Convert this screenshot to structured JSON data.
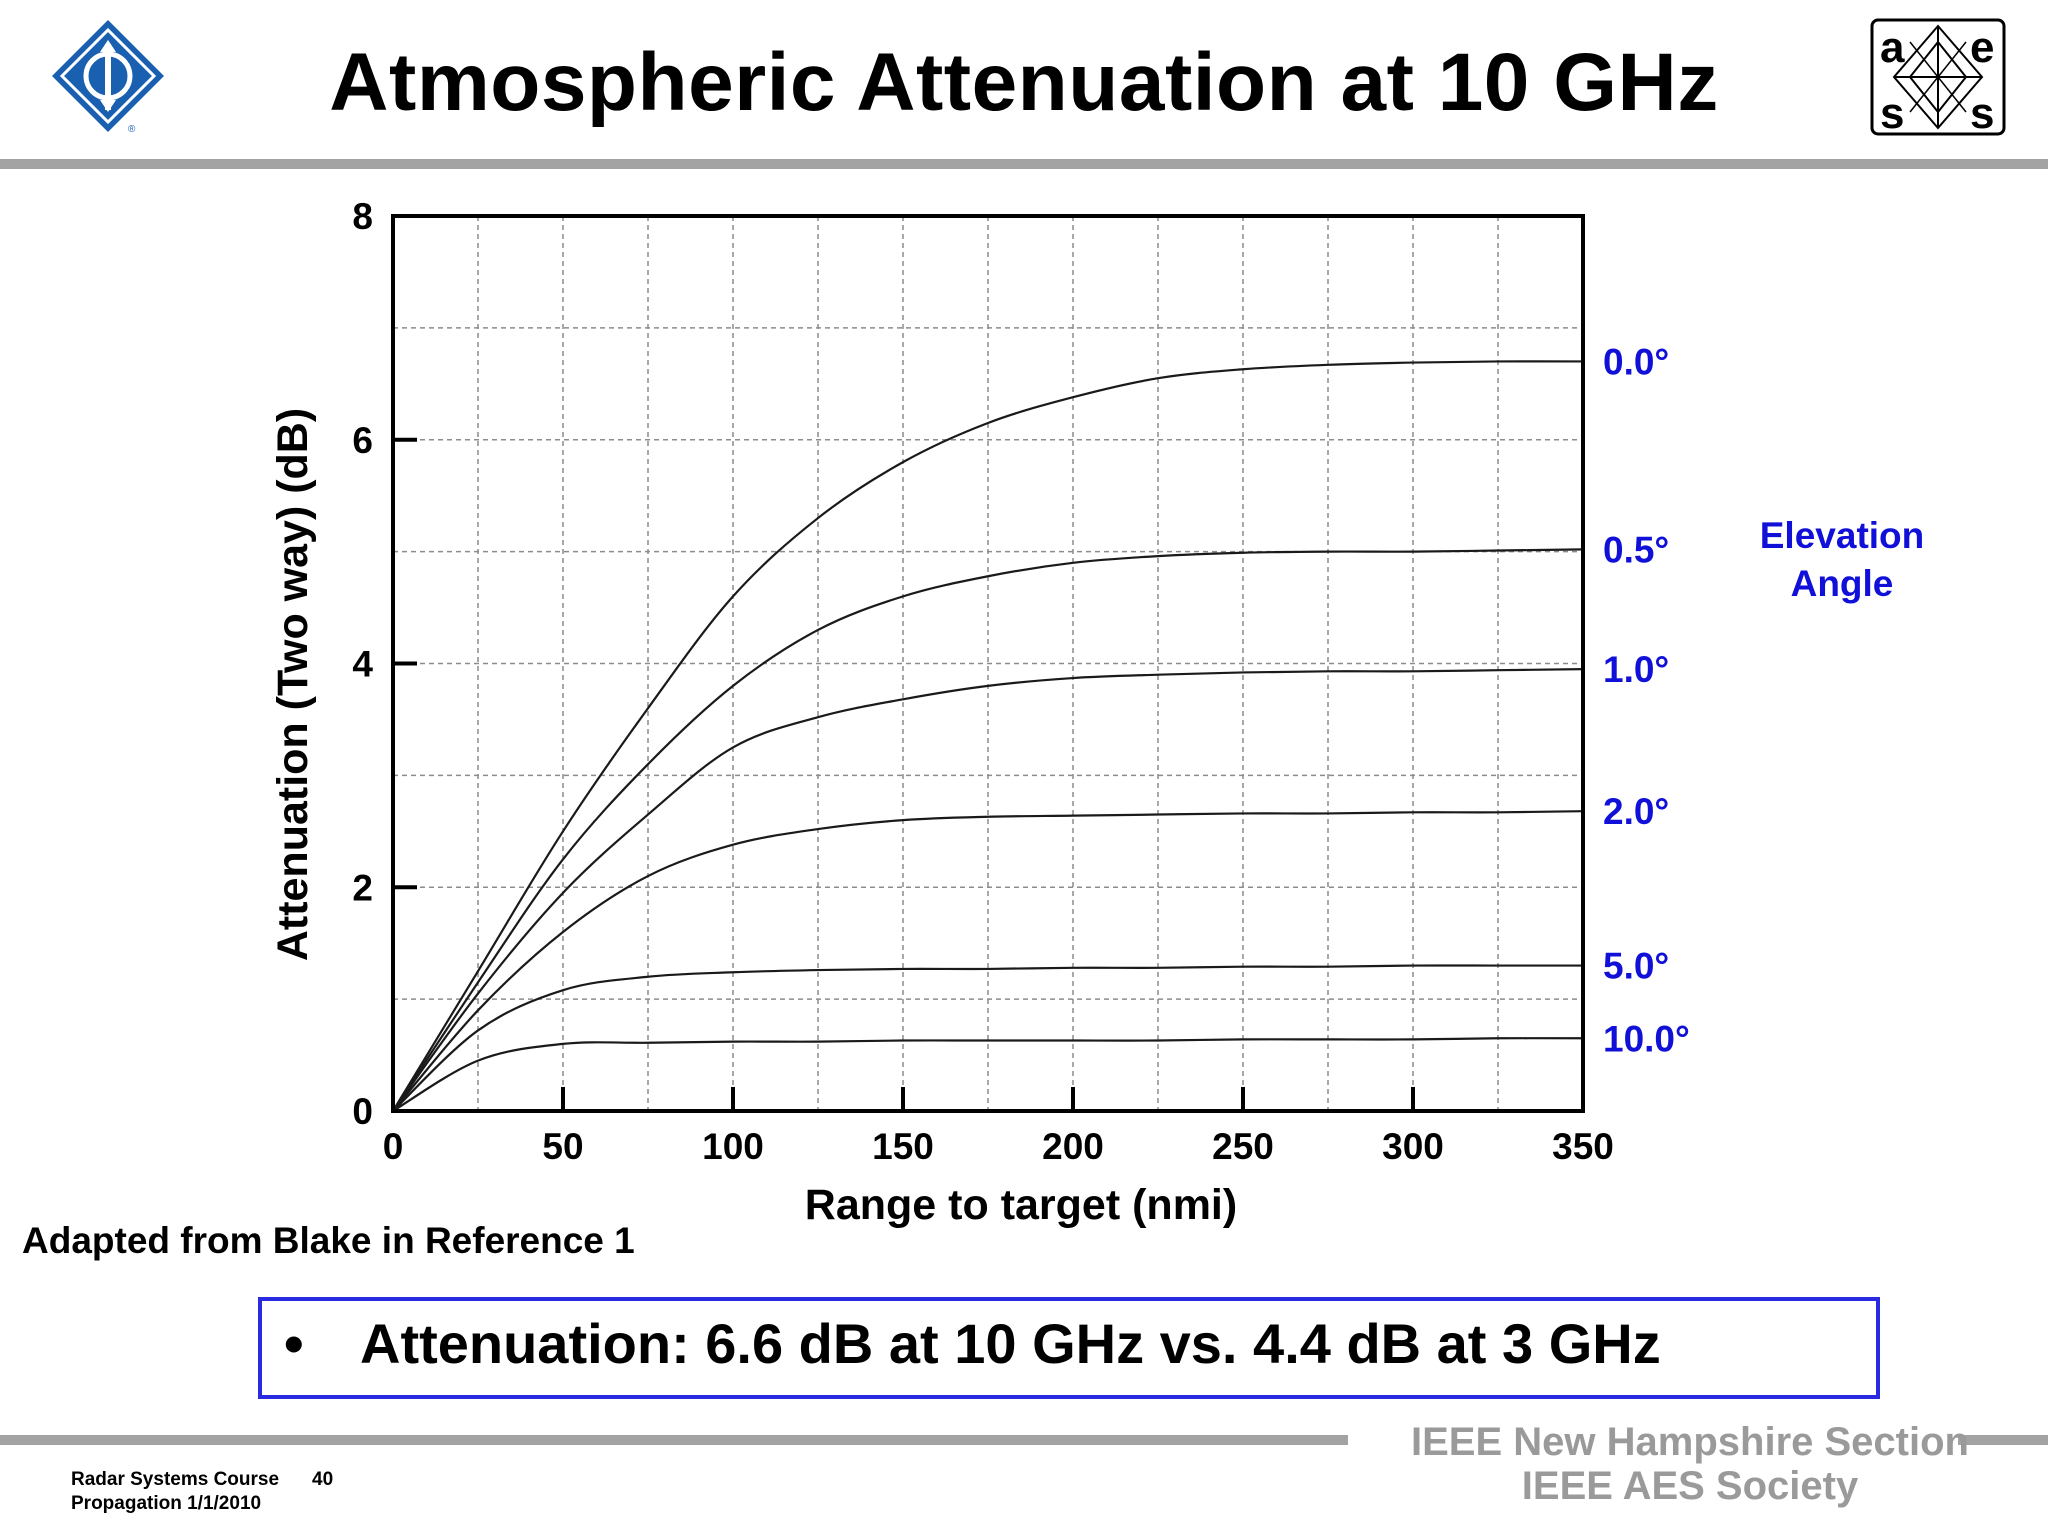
{
  "header": {
    "title": "Atmospheric Attenuation at 10 GHz",
    "logo_right_letters": [
      "a",
      "e",
      "s",
      "s"
    ]
  },
  "note": "Adapted from Blake in Reference 1",
  "callout": {
    "bullet": "•",
    "text": "Attenuation:  6.6 dB at 10 GHz vs. 4.4 dB at 3 GHz"
  },
  "footer": {
    "course_line1": "Radar Systems Course",
    "page_number": "40",
    "course_line2": "Propagation  1/1/2010",
    "org_line1": "IEEE New Hampshire Section",
    "org_line2": "IEEE AES Society"
  },
  "colors": {
    "label_blue": "#1010d8",
    "rule_gray": "#a3a3a3",
    "footer_gray": "#9a9a9a",
    "box_border": "#2a2ae0",
    "ieee_logo_blue": "#1a60b0"
  },
  "chart_data": {
    "type": "line",
    "title": "",
    "xlabel": "Range to target (nmi)",
    "ylabel": "Attenuation (Two way) (dB)",
    "xlim": [
      0,
      350
    ],
    "ylim": [
      0,
      8
    ],
    "xticks": [
      0,
      50,
      100,
      150,
      200,
      250,
      300,
      350
    ],
    "yticks": [
      0,
      2,
      4,
      6,
      8
    ],
    "grid": true,
    "legend_title": [
      "Elevation",
      "Angle"
    ],
    "x": [
      0,
      25,
      50,
      75,
      100,
      125,
      150,
      175,
      200,
      225,
      250,
      275,
      300,
      325,
      350
    ],
    "series": [
      {
        "name": "0.0°",
        "values": [
          0,
          1.25,
          2.5,
          3.6,
          4.6,
          5.3,
          5.8,
          6.15,
          6.38,
          6.55,
          6.63,
          6.67,
          6.69,
          6.7,
          6.7
        ]
      },
      {
        "name": "0.5°",
        "values": [
          0,
          1.15,
          2.25,
          3.1,
          3.8,
          4.3,
          4.6,
          4.78,
          4.9,
          4.96,
          4.99,
          5.0,
          5.0,
          5.01,
          5.02
        ]
      },
      {
        "name": "1.0°",
        "values": [
          0,
          1.05,
          1.95,
          2.65,
          3.25,
          3.52,
          3.68,
          3.8,
          3.87,
          3.9,
          3.92,
          3.93,
          3.93,
          3.94,
          3.95
        ]
      },
      {
        "name": "2.0°",
        "values": [
          0,
          0.9,
          1.6,
          2.1,
          2.38,
          2.52,
          2.6,
          2.63,
          2.64,
          2.65,
          2.66,
          2.66,
          2.67,
          2.67,
          2.68
        ]
      },
      {
        "name": "5.0°",
        "values": [
          0,
          0.72,
          1.08,
          1.2,
          1.24,
          1.26,
          1.27,
          1.27,
          1.28,
          1.28,
          1.29,
          1.29,
          1.3,
          1.3,
          1.3
        ]
      },
      {
        "name": "10.0°",
        "values": [
          0,
          0.45,
          0.6,
          0.61,
          0.62,
          0.62,
          0.63,
          0.63,
          0.63,
          0.63,
          0.64,
          0.64,
          0.64,
          0.65,
          0.65
        ]
      }
    ]
  }
}
